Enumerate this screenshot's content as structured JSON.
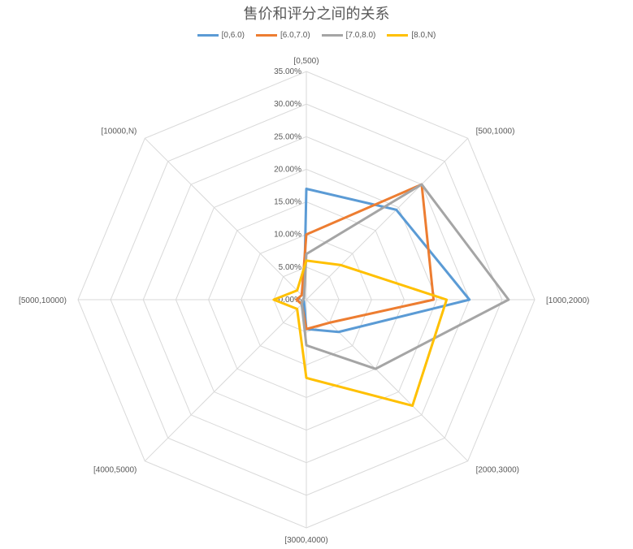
{
  "chart_data": {
    "type": "radar",
    "title": "售价和评分之间的关系",
    "categories": [
      "[0,500)",
      "[500,1000)",
      "[1000,2000)",
      "[2000,3000)",
      "[3000,4000)",
      "[4000,5000)",
      "[5000,10000)",
      "[10000,N)"
    ],
    "rlim": [
      0,
      35
    ],
    "tick_labels": [
      "0.00%",
      "5.00%",
      "10.00%",
      "15.00%",
      "20.00%",
      "25.00%",
      "30.00%",
      "35.00%"
    ],
    "series": [
      {
        "name": "[0,6.0)",
        "color": "#5b9bd5",
        "values": [
          17.0,
          19.5,
          25.0,
          7.0,
          4.5,
          0.5,
          0.5,
          0.5
        ]
      },
      {
        "name": "[6.0,7.0)",
        "color": "#ed7d31",
        "values": [
          10.0,
          25.0,
          19.5,
          5.0,
          4.5,
          1.0,
          1.5,
          1.0
        ]
      },
      {
        "name": "[7.0,8.0)",
        "color": "#a5a5a5",
        "values": [
          7.0,
          25.0,
          31.0,
          15.0,
          7.0,
          1.0,
          0.5,
          0.5
        ]
      },
      {
        "name": "[8.0,N)",
        "color": "#ffc000",
        "values": [
          6.0,
          7.5,
          21.5,
          23.0,
          12.0,
          2.0,
          5.0,
          2.0
        ]
      }
    ],
    "legend_position": "top",
    "grid": true
  }
}
